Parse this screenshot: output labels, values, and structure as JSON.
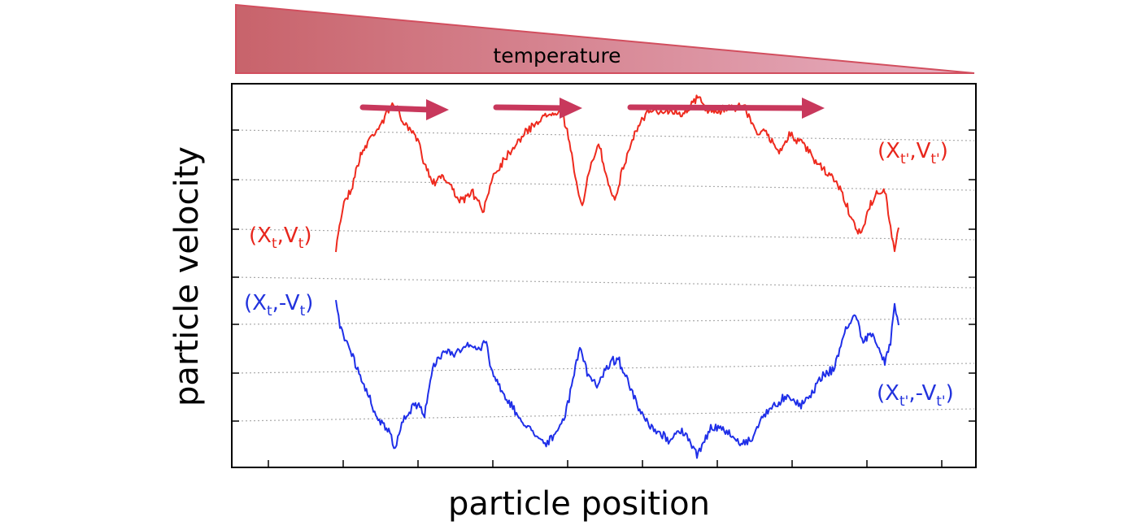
{
  "temperature_label": "temperature",
  "xlabel": "particle position",
  "ylabel": "particle velocity",
  "colors": {
    "forward_trajectory": "#ee2a1e",
    "reversed_trajectory": "#1f2fe8",
    "arrows": "#c8385c",
    "wedge_left": "#c8636b",
    "wedge_right": "#e6aabd",
    "gridlines": "#aaaaaa"
  },
  "labels": {
    "start_forward": {
      "paren_open": "(",
      "x": "X",
      "sub1": "t",
      "comma": ",",
      "v": "V",
      "sub2": "t",
      "paren_close": ")"
    },
    "end_forward": {
      "paren_open": "(",
      "x": "X",
      "sub1": "t'",
      "comma": ",",
      "v": "V",
      "sub2": "t'",
      "paren_close": ")"
    },
    "start_reversed": {
      "paren_open": "(",
      "x": "X",
      "sub1": "t",
      "comma": ",-",
      "v": "V",
      "sub2": "t",
      "paren_close": ")"
    },
    "end_reversed": {
      "paren_open": "(",
      "x": "X",
      "sub1": "t'",
      "comma": ",-",
      "v": "V",
      "sub2": "t'",
      "paren_close": ")"
    }
  }
}
